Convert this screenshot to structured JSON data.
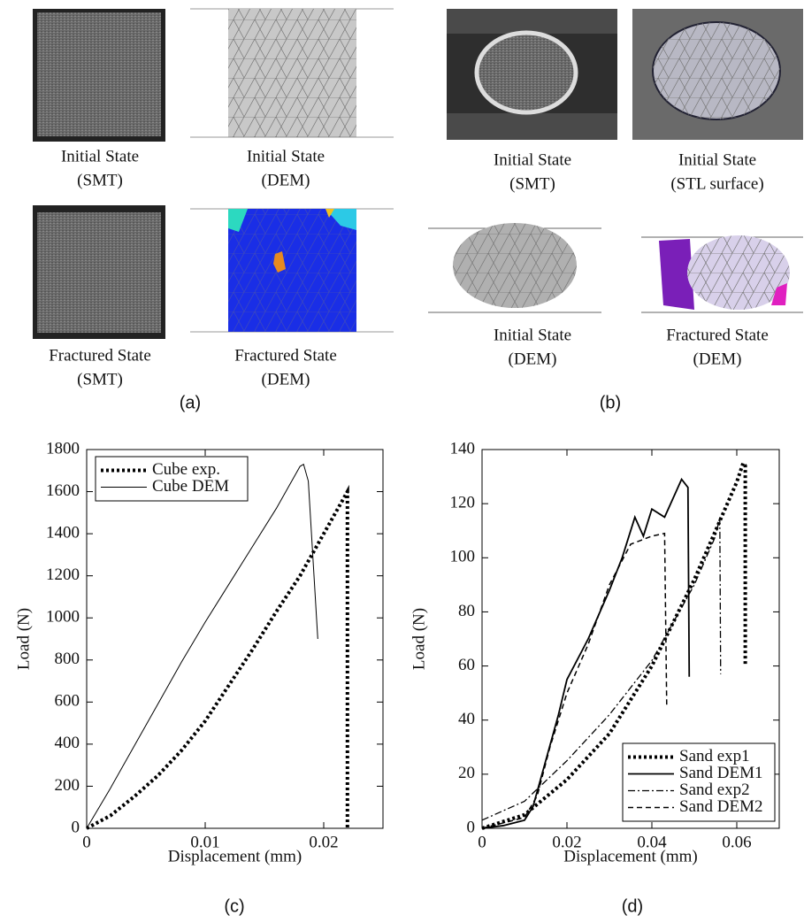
{
  "panels": [
    {
      "label": "(a)",
      "captions": [
        [
          "Initial State",
          "(SMT)"
        ],
        [
          "Initial State",
          "(DEM)"
        ],
        [
          "Fractured State",
          "(SMT)"
        ],
        [
          "Fractured State",
          "(DEM)"
        ]
      ]
    },
    {
      "label": "(b)",
      "captions": [
        [
          "Initial State",
          "(SMT)"
        ],
        [
          "Initial State",
          "(STL surface)"
        ],
        [
          "Initial State",
          "(DEM)"
        ],
        [
          "Fractured State",
          "(DEM)"
        ]
      ]
    },
    {
      "label": "(c)"
    },
    {
      "label": "(d)"
    }
  ],
  "chart_data": [
    {
      "type": "line",
      "xlabel": "Displacement (mm)",
      "ylabel": "Load (N)",
      "xlim": [
        0,
        0.025
      ],
      "xticks": [
        0,
        0.01,
        0.02
      ],
      "ylim": [
        0,
        1800
      ],
      "yticks": [
        0,
        200,
        400,
        600,
        800,
        1000,
        1200,
        1400,
        1600,
        1800
      ],
      "legend": "upper left",
      "series": [
        {
          "name": "Cube exp.",
          "color": "#000000",
          "style": "dotted",
          "x": [
            0,
            0.002,
            0.004,
            0.006,
            0.008,
            0.01,
            0.012,
            0.014,
            0.016,
            0.018,
            0.02,
            0.022,
            0.022
          ],
          "values": [
            0,
            60,
            150,
            250,
            370,
            510,
            680,
            850,
            1030,
            1200,
            1400,
            1600,
            0
          ]
        },
        {
          "name": "Cube DEM",
          "color": "#000000",
          "style": "thin",
          "x": [
            0,
            0.002,
            0.004,
            0.006,
            0.008,
            0.01,
            0.012,
            0.014,
            0.016,
            0.018,
            0.0183,
            0.0187,
            0.0195
          ],
          "values": [
            0,
            190,
            390,
            590,
            790,
            980,
            1160,
            1340,
            1520,
            1720,
            1730,
            1650,
            900
          ]
        }
      ]
    },
    {
      "type": "line",
      "xlabel": "Displacement (mm)",
      "ylabel": "Load (N)",
      "xlim": [
        0,
        0.07
      ],
      "xticks": [
        0,
        0.02,
        0.04,
        0.06
      ],
      "ylim": [
        0,
        140
      ],
      "yticks": [
        0,
        20,
        40,
        60,
        80,
        100,
        120,
        140
      ],
      "legend": "lower right",
      "series": [
        {
          "name": "Sand exp1",
          "color": "#000000",
          "style": "dotted",
          "x": [
            0,
            0.01,
            0.02,
            0.03,
            0.04,
            0.05,
            0.055,
            0.06,
            0.0615,
            0.062,
            0.062
          ],
          "values": [
            0,
            5,
            18,
            35,
            60,
            92,
            110,
            128,
            135,
            134,
            60
          ]
        },
        {
          "name": "Sand DEM1",
          "color": "#000000",
          "style": "solid",
          "x": [
            0,
            0.005,
            0.01,
            0.012,
            0.015,
            0.018,
            0.02,
            0.025,
            0.03,
            0.033,
            0.036,
            0.038,
            0.04,
            0.043,
            0.045,
            0.047,
            0.0485,
            0.0488
          ],
          "values": [
            0,
            1,
            3,
            8,
            25,
            42,
            55,
            70,
            88,
            100,
            115,
            108,
            118,
            115,
            122,
            129,
            126,
            56
          ]
        },
        {
          "name": "Sand exp2",
          "color": "#000000",
          "style": "dashdot",
          "x": [
            0,
            0.01,
            0.02,
            0.03,
            0.04,
            0.05,
            0.055,
            0.056,
            0.0562
          ],
          "values": [
            3,
            10,
            25,
            42,
            62,
            90,
            108,
            115,
            57
          ]
        },
        {
          "name": "Sand DEM2",
          "color": "#000000",
          "style": "dashed",
          "x": [
            0,
            0.01,
            0.013,
            0.016,
            0.02,
            0.025,
            0.03,
            0.035,
            0.04,
            0.043,
            0.0435
          ],
          "values": [
            0,
            4,
            12,
            30,
            50,
            68,
            90,
            105,
            108,
            109,
            45
          ]
        }
      ]
    }
  ]
}
